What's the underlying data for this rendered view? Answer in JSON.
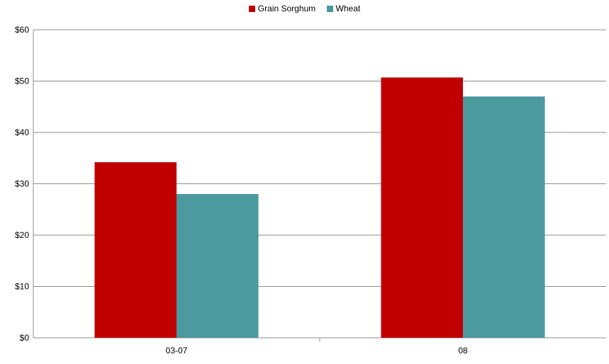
{
  "chart_data": {
    "type": "bar",
    "categories": [
      "03-07",
      "08"
    ],
    "series": [
      {
        "name": "Grain Sorghum",
        "color": "#c00000",
        "values": [
          34.2,
          50.7
        ]
      },
      {
        "name": "Wheat",
        "color": "#4a9aa0",
        "values": [
          28.0,
          47.0
        ]
      }
    ],
    "y_ticks": [
      "$0",
      "$10",
      "$20",
      "$30",
      "$40",
      "$50",
      "$60"
    ],
    "ylim": [
      0,
      60
    ],
    "grid": true,
    "legend_position": "top-center",
    "title": "",
    "xlabel": "",
    "ylabel": ""
  }
}
